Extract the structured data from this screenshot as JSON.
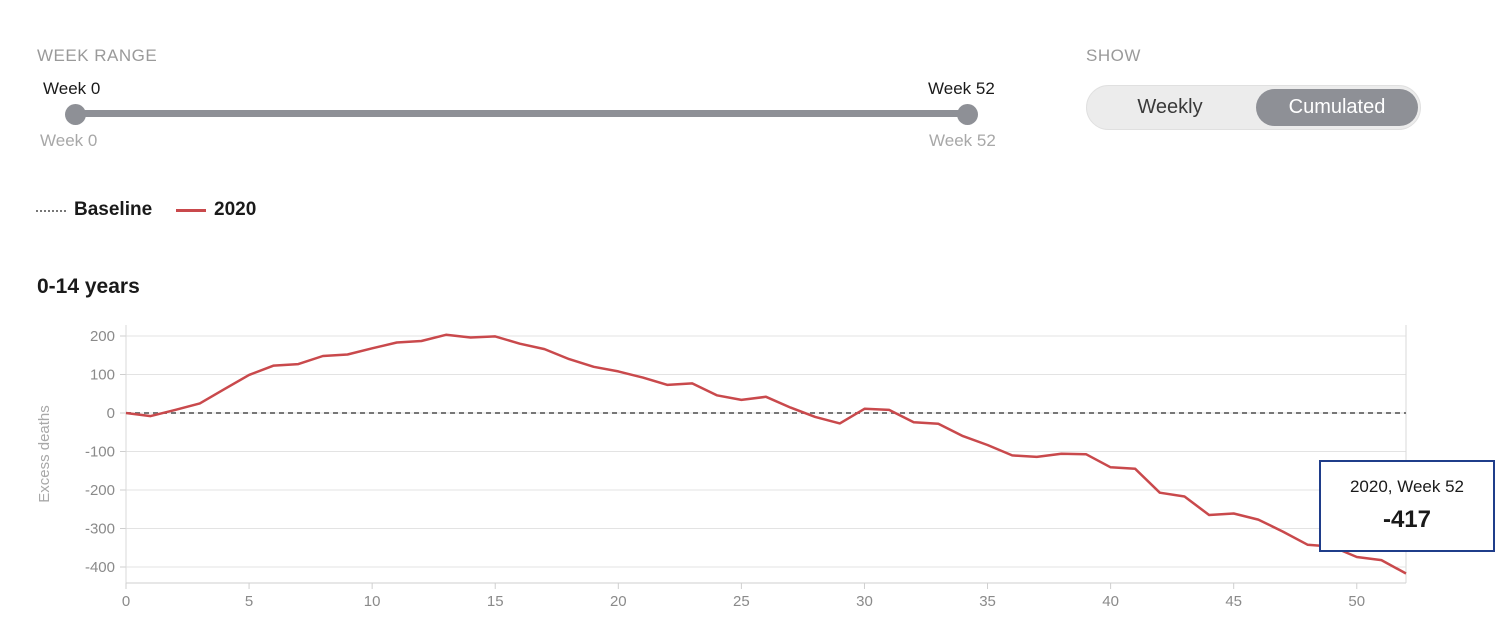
{
  "controls": {
    "week_range_label": "WEEK RANGE",
    "show_label": "SHOW",
    "range": {
      "min": 0,
      "max": 52,
      "start": 0,
      "end": 52
    },
    "start_label": "Week 0",
    "end_label": "Week 52",
    "min_label": "Week 0",
    "max_label": "Week 52",
    "toggle": {
      "weekly": "Weekly",
      "cumulated": "Cumulated",
      "selected": "Cumulated"
    }
  },
  "legend": {
    "baseline": "Baseline",
    "series": "2020"
  },
  "tooltip": {
    "label": "2020, Week 52",
    "value": "-417"
  },
  "colors": {
    "series": "#c9494c",
    "baseline": "#777777",
    "control": "#8e9096",
    "tooltip_border": "#1f3d8a",
    "grid": "#e3e3e3"
  },
  "chart_data": {
    "type": "line",
    "title": "0-14 years",
    "ylabel": "Excess deaths",
    "xlim": [
      0,
      52
    ],
    "ylim": [
      -430,
      230
    ],
    "xticks": [
      0,
      5,
      10,
      15,
      20,
      25,
      30,
      35,
      40,
      45,
      50
    ],
    "yticks": [
      200,
      100,
      0,
      -100,
      -200,
      -300,
      -400
    ],
    "grid": true,
    "legend_position": "top-left",
    "baseline": {
      "name": "Baseline",
      "x": [
        0,
        52
      ],
      "y": [
        0,
        0
      ]
    },
    "series": [
      {
        "name": "2020",
        "x": [
          0,
          1,
          2,
          3,
          4,
          5,
          6,
          7,
          8,
          9,
          10,
          11,
          12,
          13,
          14,
          15,
          16,
          17,
          18,
          19,
          20,
          21,
          22,
          23,
          24,
          25,
          26,
          27,
          28,
          29,
          30,
          31,
          32,
          33,
          34,
          35,
          36,
          37,
          38,
          39,
          40,
          41,
          42,
          43,
          44,
          45,
          46,
          47,
          48,
          49,
          50,
          51,
          52
        ],
        "y": [
          0,
          -8,
          8,
          25,
          62,
          99,
          123,
          127,
          148,
          152,
          168,
          183,
          187,
          203,
          196,
          199,
          180,
          166,
          140,
          120,
          108,
          92,
          73,
          77,
          46,
          34,
          42,
          14,
          -10,
          -27,
          11,
          8,
          -24,
          -28,
          -60,
          -83,
          -110,
          -114,
          -106,
          -107,
          -141,
          -145,
          -207,
          -217,
          -265,
          -261,
          -277,
          -308,
          -342,
          -347,
          -374,
          -382,
          -417
        ]
      }
    ]
  }
}
